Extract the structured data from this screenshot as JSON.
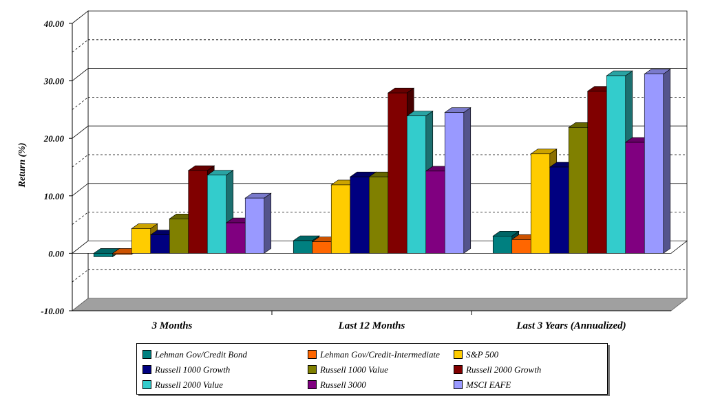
{
  "chart_data": {
    "type": "bar",
    "categories": [
      "3 Months",
      "Last 12 Months",
      "Last 3 Years (Annualized)"
    ],
    "ylabel": "Return (%)",
    "ylim": [
      -10,
      40
    ],
    "yticks": [
      "40.00",
      "30.00",
      "20.00",
      "10.00",
      "0.00",
      "-10.00"
    ],
    "grid": true,
    "legend_position": "bottom",
    "series": [
      {
        "name": "Lehman Gov/Credit Bond",
        "color": "#008080",
        "values": [
          -0.6,
          2.2,
          3.0
        ]
      },
      {
        "name": "Lehman Gov/Credit-Intermediate",
        "color": "#ff6600",
        "values": [
          -0.2,
          2.0,
          2.4
        ]
      },
      {
        "name": "S&P 500",
        "color": "#ffcc00",
        "values": [
          4.3,
          11.9,
          17.3
        ]
      },
      {
        "name": "Russell 1000 Growth",
        "color": "#000080",
        "values": [
          3.2,
          13.3,
          15.0
        ]
      },
      {
        "name": "Russell 1000 Value",
        "color": "#808000",
        "values": [
          6.0,
          13.3,
          21.9
        ]
      },
      {
        "name": "Russell 2000 Growth",
        "color": "#800000",
        "values": [
          14.4,
          27.9,
          28.2
        ]
      },
      {
        "name": "Russell 2000 Value",
        "color": "#33cccc",
        "values": [
          13.6,
          23.9,
          30.9
        ]
      },
      {
        "name": "Russell 3000",
        "color": "#800080",
        "values": [
          5.3,
          14.3,
          19.3
        ]
      },
      {
        "name": "MSCI EAFE",
        "color": "#9999ff",
        "values": [
          9.6,
          24.5,
          31.2
        ]
      }
    ]
  }
}
